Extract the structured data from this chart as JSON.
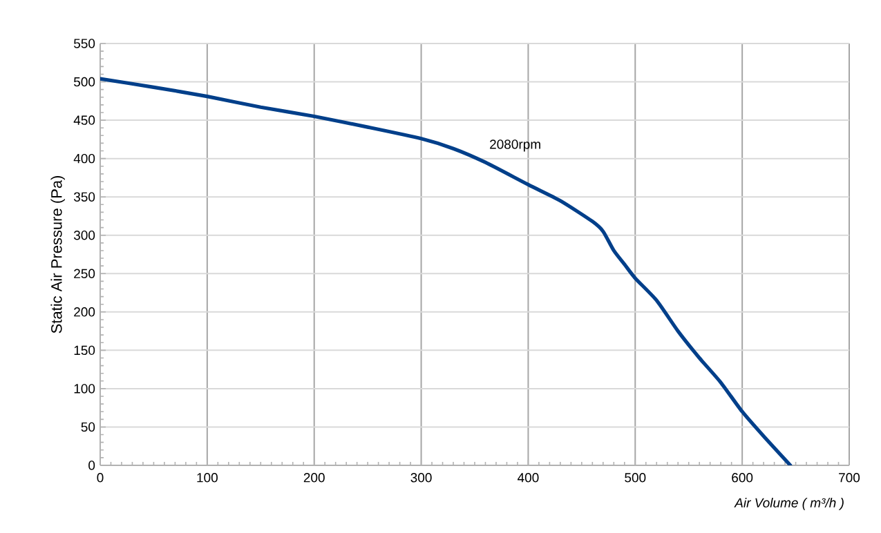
{
  "chart_data": {
    "type": "line",
    "xlabel": "Air Volume ( m³/h )",
    "ylabel": "Static Air Pressure  (Pa)",
    "x": [
      0,
      50,
      100,
      150,
      200,
      250,
      300,
      330,
      360,
      400,
      430,
      460,
      470,
      480,
      490,
      500,
      520,
      540,
      560,
      580,
      600,
      620,
      645
    ],
    "series": [
      {
        "color": "#003f8a",
        "values": [
          504,
          493,
          481,
          467,
          455,
          441,
          426,
          413,
          395,
          366,
          345,
          318,
          305,
          280,
          262,
          244,
          215,
          175,
          140,
          108,
          70,
          38,
          0
        ]
      }
    ],
    "xlim": [
      0,
      700
    ],
    "xticks": [
      0,
      100,
      200,
      300,
      400,
      500,
      600,
      700
    ],
    "ylim": [
      0,
      550
    ],
    "yticks": [
      0,
      50,
      100,
      150,
      200,
      250,
      300,
      350,
      400,
      450,
      500,
      550
    ],
    "grid": true,
    "marker": "none",
    "line_style": "solid",
    "annotations": [
      "2080rpm"
    ]
  }
}
